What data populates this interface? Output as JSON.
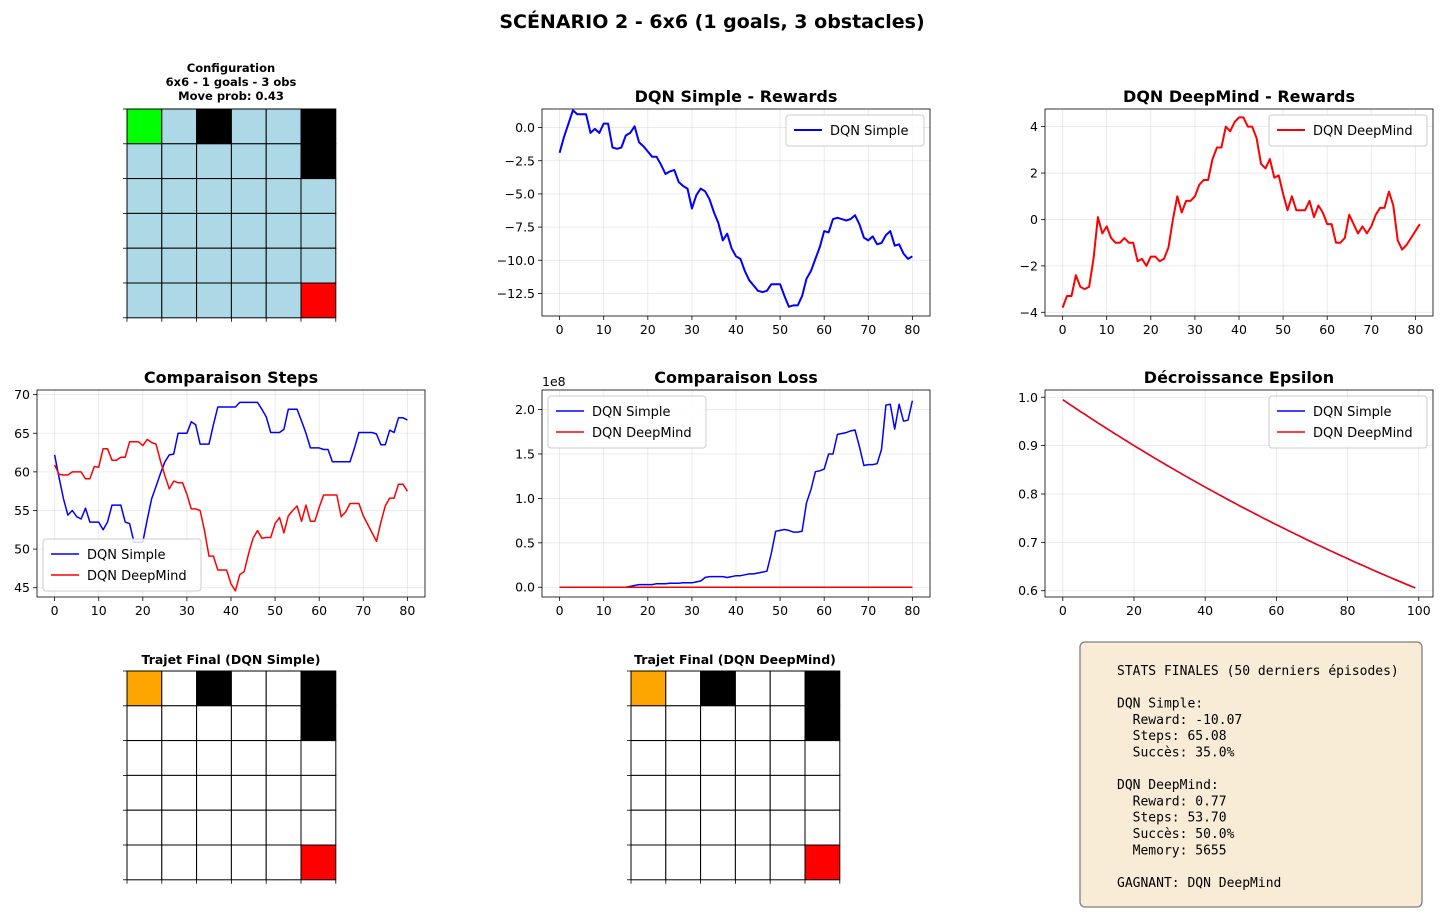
{
  "figure": {
    "title": "SCÉNARIO 2 - 6x6 (1 goals, 3 obstacles)"
  },
  "colors": {
    "simple": "#0000ff",
    "deepmind": "#ff0000",
    "cell": "#add8e6",
    "start": "#00ff00",
    "obstacle": "#000000",
    "goal": "#ff0000",
    "agent": "#ffa500",
    "grid_line": "#000000",
    "stats_bg": "#f8ecd6"
  },
  "config_grid": {
    "title_lines": [
      "Configuration",
      "6x6 - 1 goals - 3 obs",
      "Move prob: 0.43"
    ],
    "size": 6,
    "start": [
      0,
      0
    ],
    "obstacles": [
      [
        0,
        2
      ],
      [
        0,
        5
      ],
      [
        1,
        5
      ]
    ],
    "goals": [
      [
        5,
        5
      ]
    ]
  },
  "path_simple": {
    "title": "Trajet Final (DQN Simple)",
    "agent": [
      0,
      0
    ],
    "obstacles": [
      [
        0,
        2
      ],
      [
        0,
        5
      ],
      [
        1,
        5
      ]
    ],
    "goals": [
      [
        5,
        5
      ]
    ]
  },
  "path_deepmind": {
    "title": "Trajet Final (DQN DeepMind)",
    "agent": [
      0,
      0
    ],
    "obstacles": [
      [
        0,
        2
      ],
      [
        0,
        5
      ],
      [
        1,
        5
      ]
    ],
    "goals": [
      [
        5,
        5
      ]
    ]
  },
  "chart_data": [
    {
      "id": "rewards_simple",
      "type": "line",
      "title": "DQN Simple - Rewards",
      "xlim": [
        -4,
        84
      ],
      "ylim": [
        -14.2,
        1.4
      ],
      "xticks": [
        0,
        10,
        20,
        30,
        40,
        50,
        60,
        70,
        80
      ],
      "yticks": [
        0.0,
        -2.5,
        -5.0,
        -7.5,
        -10.0,
        -12.5
      ],
      "ytick_labels": [
        "0.0",
        "−2.5",
        "−5.0",
        "−7.5",
        "−10.0",
        "−12.5"
      ],
      "grid": true,
      "legend": "upper-right",
      "series": [
        {
          "name": "DQN Simple",
          "color": "#0000ff",
          "x_start": 0,
          "values": [
            -1.9,
            -0.7,
            0.3,
            1.3,
            1.0,
            1.0,
            1.0,
            -0.4,
            -0.1,
            -0.4,
            0.3,
            0.3,
            -1.5,
            -1.6,
            -1.5,
            -0.6,
            -0.4,
            0.1,
            -1.1,
            -1.4,
            -1.8,
            -2.2,
            -2.2,
            -2.8,
            -3.5,
            -3.3,
            -3.2,
            -4.1,
            -4.4,
            -4.6,
            -6.1,
            -5.1,
            -4.6,
            -4.8,
            -5.4,
            -6.4,
            -7.2,
            -8.5,
            -8.0,
            -9.1,
            -9.7,
            -9.9,
            -10.8,
            -11.5,
            -11.9,
            -12.3,
            -12.4,
            -12.3,
            -11.8,
            -11.8,
            -11.8,
            -12.7,
            -13.5,
            -13.4,
            -13.4,
            -12.7,
            -11.4,
            -10.8,
            -9.9,
            -9.0,
            -7.8,
            -7.9,
            -6.9,
            -6.8,
            -6.9,
            -7.0,
            -6.9,
            -6.6,
            -7.3,
            -8.3,
            -8.5,
            -8.2,
            -8.8,
            -8.7,
            -8.1,
            -7.8,
            -8.9,
            -8.8,
            -9.5,
            -9.9,
            -9.7
          ]
        }
      ]
    },
    {
      "id": "rewards_deepmind",
      "type": "line",
      "title": "DQN DeepMind - Rewards",
      "xlim": [
        -4,
        84
      ],
      "ylim": [
        -4.16,
        4.76
      ],
      "xticks": [
        0,
        10,
        20,
        30,
        40,
        50,
        60,
        70,
        80
      ],
      "yticks": [
        4,
        2,
        0,
        -2,
        -4
      ],
      "ytick_labels": [
        "4",
        "2",
        "0",
        "−2",
        "−4"
      ],
      "grid": true,
      "legend": "upper-right",
      "series": [
        {
          "name": "DQN DeepMind",
          "color": "#ff0000",
          "x_start": 0,
          "values": [
            -3.8,
            -3.3,
            -3.3,
            -2.4,
            -2.9,
            -3.0,
            -2.9,
            -1.7,
            0.1,
            -0.6,
            -0.3,
            -0.8,
            -1.0,
            -1.0,
            -0.8,
            -1.0,
            -1.0,
            -1.8,
            -1.7,
            -2.0,
            -1.6,
            -1.6,
            -1.8,
            -1.7,
            -1.2,
            0.0,
            1.0,
            0.3,
            0.8,
            0.8,
            1.0,
            1.5,
            1.7,
            1.7,
            2.6,
            3.1,
            3.1,
            4.0,
            3.8,
            4.2,
            4.4,
            4.4,
            4.0,
            4.0,
            3.5,
            2.4,
            2.2,
            2.6,
            1.8,
            1.9,
            1.1,
            0.4,
            1.0,
            0.4,
            0.4,
            0.4,
            0.8,
            0.1,
            0.6,
            0.3,
            -0.2,
            -0.2,
            -1.0,
            -1.0,
            -0.8,
            0.2,
            -0.2,
            -0.6,
            -0.3,
            -0.6,
            -0.3,
            0.2,
            0.5,
            0.5,
            1.2,
            0.6,
            -0.9,
            -1.3,
            -1.1,
            -0.8,
            -0.5,
            -0.2
          ]
        }
      ]
    },
    {
      "id": "steps",
      "type": "line",
      "title": "Comparaison Steps",
      "xlim": [
        -4,
        84
      ],
      "ylim": [
        43.8,
        70.6
      ],
      "xticks": [
        0,
        10,
        20,
        30,
        40,
        50,
        60,
        70,
        80
      ],
      "yticks": [
        70,
        65,
        60,
        55,
        50,
        45
      ],
      "ytick_labels": [
        "70",
        "65",
        "60",
        "55",
        "50",
        "45"
      ],
      "grid": true,
      "legend": "lower-left",
      "series": [
        {
          "name": "DQN Simple",
          "color": "#0000ff",
          "x_start": 0,
          "values": [
            62.2,
            59.3,
            56.5,
            54.4,
            55.0,
            54.2,
            53.9,
            55.3,
            53.5,
            53.5,
            53.5,
            52.5,
            53.5,
            55.7,
            55.7,
            55.7,
            53.5,
            53.3,
            50.9,
            50.9,
            50.9,
            53.8,
            56.5,
            58.1,
            59.8,
            61.3,
            62.2,
            62.3,
            65.0,
            65.0,
            65.0,
            66.5,
            66.1,
            63.6,
            63.6,
            63.6,
            66.1,
            68.4,
            68.4,
            68.4,
            68.4,
            68.4,
            69.0,
            69.0,
            69.0,
            69.0,
            69.0,
            68.1,
            67.1,
            65.1,
            65.1,
            65.1,
            65.5,
            68.1,
            68.1,
            68.1,
            66.6,
            65.0,
            63.1,
            63.1,
            63.1,
            62.9,
            62.9,
            61.3,
            61.3,
            61.3,
            61.3,
            61.3,
            63.1,
            65.1,
            65.1,
            65.1,
            65.1,
            64.9,
            63.5,
            63.5,
            65.4,
            65.1,
            67.0,
            67.0,
            66.7
          ]
        },
        {
          "name": "DQN DeepMind",
          "color": "#ff0000",
          "x_start": 0,
          "values": [
            60.9,
            59.7,
            59.6,
            59.6,
            60.0,
            60.0,
            60.0,
            59.1,
            59.1,
            60.7,
            60.6,
            63.0,
            63.0,
            61.5,
            61.5,
            61.9,
            61.9,
            63.9,
            63.9,
            63.9,
            63.4,
            64.2,
            63.8,
            63.6,
            61.4,
            59.5,
            57.8,
            58.8,
            58.6,
            58.6,
            57.1,
            55.2,
            55.2,
            55.0,
            52.4,
            49.1,
            49.1,
            47.3,
            47.3,
            47.3,
            45.5,
            44.6,
            46.7,
            47.1,
            49.4,
            51.4,
            52.4,
            51.4,
            51.5,
            51.5,
            53.3,
            54.1,
            52.1,
            54.3,
            55.0,
            55.6,
            53.6,
            55.7,
            53.6,
            53.6,
            55.4,
            57.0,
            57.0,
            57.0,
            57.0,
            54.2,
            54.8,
            55.9,
            55.9,
            55.9,
            54.3,
            53.2,
            52.1,
            51.0,
            53.5,
            55.6,
            56.6,
            56.6,
            58.4,
            58.4,
            57.5
          ]
        }
      ]
    },
    {
      "id": "loss",
      "type": "line",
      "title": "Comparaison Loss",
      "scale_label": "1e8",
      "xlim": [
        -4,
        84
      ],
      "ylim": [
        -0.11,
        2.22
      ],
      "xticks": [
        0,
        10,
        20,
        30,
        40,
        50,
        60,
        70,
        80
      ],
      "yticks": [
        2.0,
        1.5,
        1.0,
        0.5,
        0.0
      ],
      "ytick_labels": [
        "2.0",
        "1.5",
        "1.0",
        "0.5",
        "0.0"
      ],
      "grid": true,
      "legend": "upper-left",
      "series": [
        {
          "name": "DQN Simple",
          "color": "#0000ff",
          "x_start": 0,
          "values": [
            0.0,
            0.0,
            0.0,
            0.0,
            0.0,
            0.0,
            0.0,
            0.0,
            0.0,
            0.0,
            0.0,
            0.0,
            0.0,
            0.0,
            0.0,
            0.0,
            0.01,
            0.02,
            0.03,
            0.03,
            0.03,
            0.03,
            0.04,
            0.04,
            0.04,
            0.045,
            0.045,
            0.045,
            0.05,
            0.05,
            0.05,
            0.06,
            0.07,
            0.11,
            0.12,
            0.12,
            0.12,
            0.12,
            0.11,
            0.12,
            0.13,
            0.13,
            0.14,
            0.15,
            0.15,
            0.16,
            0.17,
            0.18,
            0.38,
            0.63,
            0.64,
            0.65,
            0.64,
            0.62,
            0.62,
            0.63,
            0.95,
            1.1,
            1.3,
            1.31,
            1.33,
            1.5,
            1.5,
            1.72,
            1.73,
            1.74,
            1.76,
            1.77,
            1.58,
            1.37,
            1.38,
            1.38,
            1.39,
            1.55,
            2.05,
            2.06,
            1.78,
            2.06,
            1.87,
            1.88,
            2.1
          ]
        },
        {
          "name": "DQN DeepMind",
          "color": "#ff0000",
          "x_start": 0,
          "values": [
            0.0,
            0.0,
            0.0,
            0.0,
            0.0,
            0.0,
            0.0,
            0.0,
            0.0,
            0.0,
            0.0,
            0.0,
            0.0,
            0.0,
            0.0,
            0.0,
            0.0,
            0.0,
            0.0,
            0.0,
            0.0,
            0.0,
            0.0,
            0.0,
            0.0,
            0.0,
            0.0,
            0.0,
            0.0,
            0.0,
            0.0,
            0.0,
            0.0,
            0.0,
            0.0,
            0.0,
            0.0,
            0.0,
            0.0,
            0.0,
            0.0,
            0.0,
            0.0,
            0.0,
            0.0,
            0.0,
            0.0,
            0.0,
            0.0,
            0.0,
            0.0,
            0.0,
            0.0,
            0.0,
            0.0,
            0.0,
            0.0,
            0.0,
            0.0,
            0.0,
            0.0,
            0.0,
            0.0,
            0.0,
            0.0,
            0.0,
            0.0,
            0.0,
            0.0,
            0.0,
            0.0,
            0.0,
            0.0,
            0.0,
            0.0,
            0.0,
            0.0,
            0.0,
            0.0,
            0.0,
            0.0
          ]
        }
      ]
    },
    {
      "id": "epsilon",
      "type": "line",
      "title": "Décroissance Epsilon",
      "xlim": [
        -5,
        104
      ],
      "ylim": [
        0.587,
        1.015
      ],
      "xticks": [
        0,
        20,
        40,
        60,
        80,
        100
      ],
      "yticks": [
        1.0,
        0.9,
        0.8,
        0.7,
        0.6
      ],
      "ytick_labels": [
        "1.0",
        "0.9",
        "0.8",
        "0.7",
        "0.6"
      ],
      "grid": true,
      "legend": "upper-right",
      "series": [
        {
          "name": "DQN Simple",
          "color": "#0000ff",
          "start": 0.995,
          "decay": 0.995,
          "x_start": 0,
          "x_end": 99
        },
        {
          "name": "DQN DeepMind",
          "color": "#ff0000",
          "start": 0.995,
          "decay": 0.995,
          "x_start": 0,
          "x_end": 99
        }
      ]
    }
  ],
  "stats": {
    "lines": [
      "STATS FINALES (50 derniers épisodes)",
      "",
      "DQN Simple:",
      "  Reward: -10.07",
      "  Steps: 65.08",
      "  Succès: 35.0%",
      "",
      "DQN DeepMind:",
      "  Reward: 0.77",
      "  Steps: 53.70",
      "  Succès: 50.0%",
      "  Memory: 5655",
      "",
      "GAGNANT: DQN DeepMind"
    ]
  }
}
